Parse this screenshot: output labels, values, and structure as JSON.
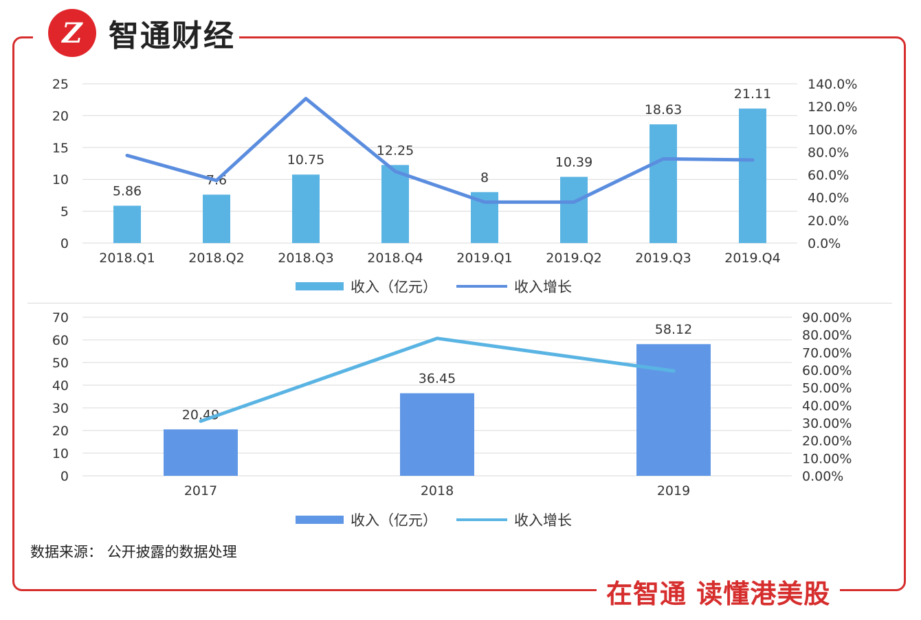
{
  "brand": {
    "logo_mark": "Z",
    "name": "智通财经"
  },
  "slogan": "在智通  读懂港美股",
  "source_note": "数据来源：  公开披露的数据处理",
  "colors": {
    "frame": "#d62d2d",
    "bar1": "#5ab4e3",
    "line1": "#5b8ddf",
    "bar2": "#5f97e6",
    "line2": "#5ab4e3",
    "grid": "#d9d9d9"
  },
  "chart_data": [
    {
      "type": "bar",
      "title": "",
      "categories": [
        "2018.Q1",
        "2018.Q2",
        "2018.Q3",
        "2018.Q4",
        "2019.Q1",
        "2019.Q2",
        "2019.Q3",
        "2019.Q4"
      ],
      "series": [
        {
          "name": "收入（亿元）",
          "axis": "left",
          "kind": "bar",
          "values": [
            5.86,
            7.6,
            10.75,
            12.25,
            8,
            10.39,
            18.63,
            21.11
          ],
          "labels": [
            "5.86",
            "7.6",
            "10.75",
            "12.25",
            "8",
            "10.39",
            "18.63",
            "21.11"
          ]
        },
        {
          "name": "收入增长",
          "axis": "right",
          "kind": "line",
          "values": [
            77,
            55,
            127,
            63,
            36,
            36,
            74,
            73
          ]
        }
      ],
      "ylim": [
        0,
        25
      ],
      "yticks": [
        "0",
        "5",
        "10",
        "15",
        "20",
        "25"
      ],
      "y2lim": [
        0,
        140
      ],
      "y2ticks": [
        "0.0%",
        "20.0%",
        "40.0%",
        "60.0%",
        "80.0%",
        "100.0%",
        "120.0%",
        "140.0%"
      ],
      "legend": [
        "收入（亿元）",
        "收入增长"
      ],
      "legend_position": "bottom"
    },
    {
      "type": "bar",
      "title": "",
      "categories": [
        "2017",
        "2018",
        "2019"
      ],
      "series": [
        {
          "name": "收入（亿元）",
          "axis": "left",
          "kind": "bar",
          "values": [
            20.49,
            36.45,
            58.12
          ],
          "labels": [
            "20.49",
            "36.45",
            "58.12"
          ]
        },
        {
          "name": "收入增长",
          "axis": "right",
          "kind": "line",
          "values": [
            31,
            78,
            59.5
          ]
        }
      ],
      "ylim": [
        0,
        70
      ],
      "yticks": [
        "0",
        "10",
        "20",
        "30",
        "40",
        "50",
        "60",
        "70"
      ],
      "y2lim": [
        0,
        90
      ],
      "y2ticks": [
        "0.00%",
        "10.00%",
        "20.00%",
        "30.00%",
        "40.00%",
        "50.00%",
        "60.00%",
        "70.00%",
        "80.00%",
        "90.00%"
      ],
      "legend": [
        "收入（亿元）",
        "收入增长"
      ],
      "legend_position": "bottom"
    }
  ]
}
